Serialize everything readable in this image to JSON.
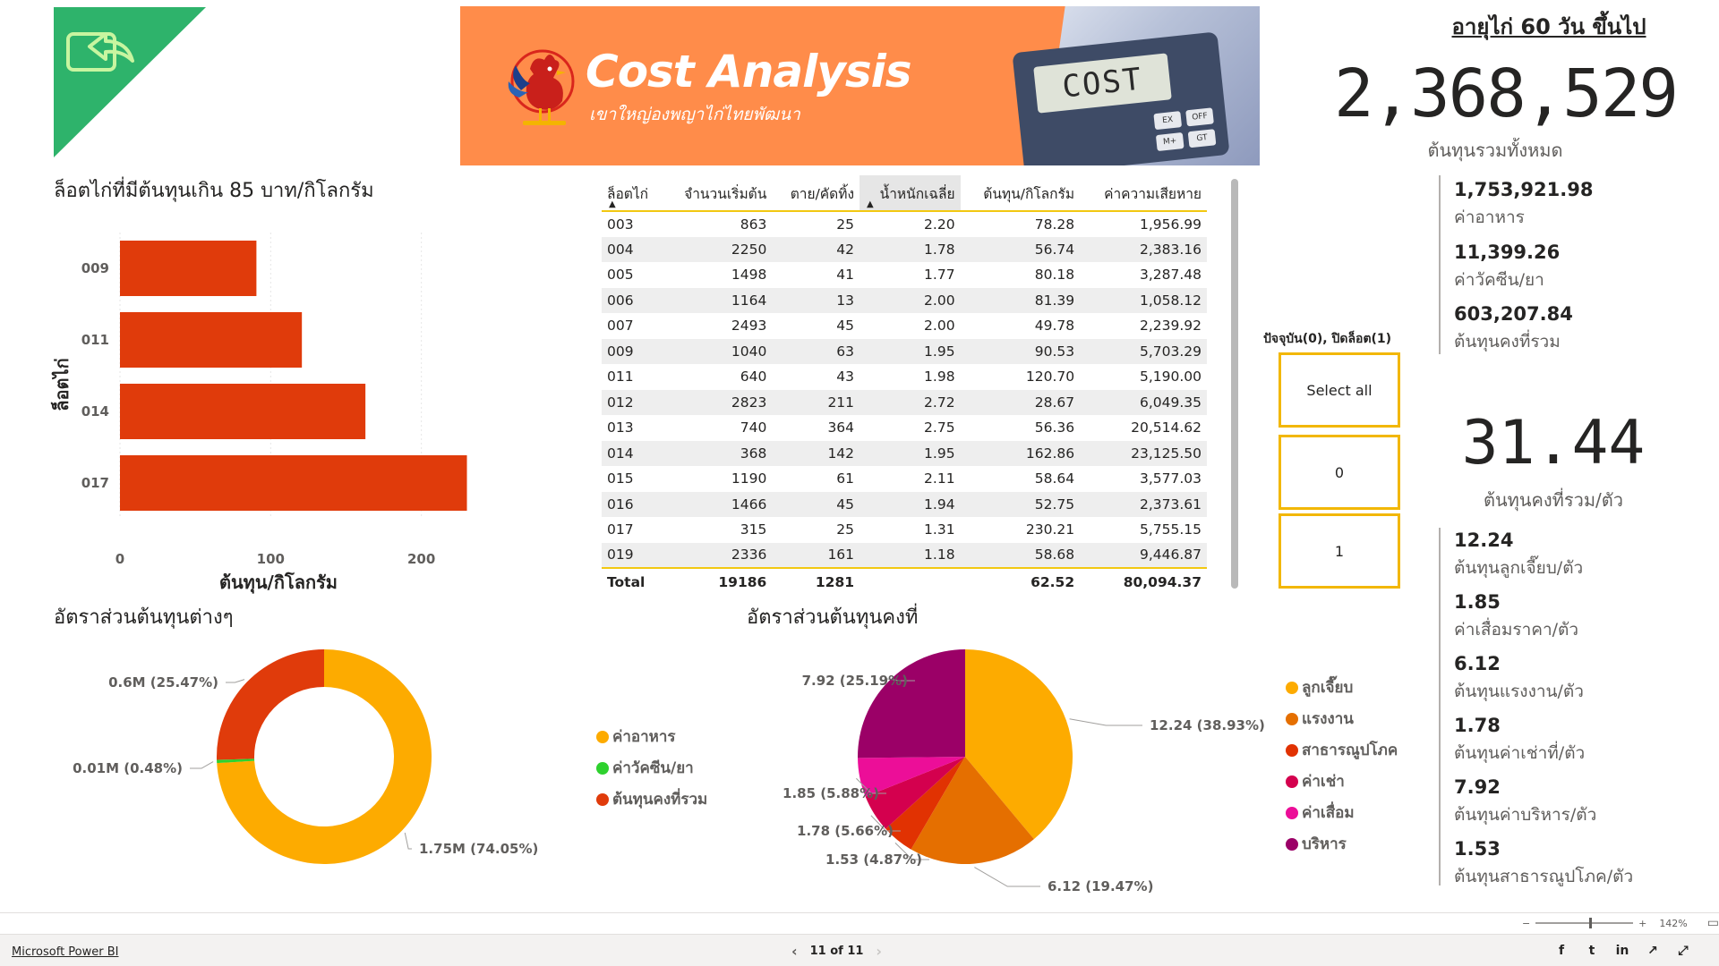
{
  "banner": {
    "title": "Cost Analysis",
    "subtitle": "เขาใหญ่องพญาไก่ไทยพัฒนา",
    "calc_screen": "COST",
    "calc_keys": [
      "EX",
      "OFF",
      "M+",
      "GT"
    ]
  },
  "kpi": {
    "header": "อายุไก่ 60 วัน ขึ้นไป",
    "total_value": "2,368,529",
    "total_label": "ต้นทุนรวมทั้งหมด",
    "breakdown": [
      {
        "value": "1,753,921.98",
        "label": "ค่าอาหาร"
      },
      {
        "value": "11,399.26",
        "label": "ค่าวัคซีน/ยา"
      },
      {
        "value": "603,207.84",
        "label": "ต้นทุนคงที่รวม"
      }
    ],
    "per_bird_value": "31.44",
    "per_bird_label": "ต้นทุนคงที่รวม/ตัว",
    "per_bird_items": [
      {
        "value": "12.24",
        "label": "ต้นทุนลูกเจี๊ยบ/ตัว"
      },
      {
        "value": "1.85",
        "label": "ค่าเสื่อมราคา/ตัว"
      },
      {
        "value": "6.12",
        "label": "ต้นทุนแรงงาน/ตัว"
      },
      {
        "value": "1.78",
        "label": "ต้นทุนค่าเช่าที่/ตัว"
      },
      {
        "value": "7.92",
        "label": "ต้นทุนค่าบริหาร/ตัว"
      },
      {
        "value": "1.53",
        "label": "ต้นทุนสาธารณูปโภค/ตัว"
      }
    ]
  },
  "bar_section": {
    "title": "ล็อตไก่ที่มีต้นทุนเกิน 85 บาท/กิโลกรัม"
  },
  "table": {
    "headers": [
      "ล็อตไก่",
      "จำนวนเริ่มต้น",
      "ตาย/คัดทิ้ง",
      "น้ำหนักเฉลี่ย",
      "ต้นทุน/กิโลกรัม",
      "ค่าความเสียหาย"
    ],
    "rows": [
      [
        "003",
        "863",
        "25",
        "2.20",
        "78.28",
        "1,956.99"
      ],
      [
        "004",
        "2250",
        "42",
        "1.78",
        "56.74",
        "2,383.16"
      ],
      [
        "005",
        "1498",
        "41",
        "1.77",
        "80.18",
        "3,287.48"
      ],
      [
        "006",
        "1164",
        "13",
        "2.00",
        "81.39",
        "1,058.12"
      ],
      [
        "007",
        "2493",
        "45",
        "2.00",
        "49.78",
        "2,239.92"
      ],
      [
        "009",
        "1040",
        "63",
        "1.95",
        "90.53",
        "5,703.29"
      ],
      [
        "011",
        "640",
        "43",
        "1.98",
        "120.70",
        "5,190.00"
      ],
      [
        "012",
        "2823",
        "211",
        "2.72",
        "28.67",
        "6,049.35"
      ],
      [
        "013",
        "740",
        "364",
        "2.75",
        "56.36",
        "20,514.62"
      ],
      [
        "014",
        "368",
        "142",
        "1.95",
        "162.86",
        "23,125.50"
      ],
      [
        "015",
        "1190",
        "61",
        "2.11",
        "58.64",
        "3,577.03"
      ],
      [
        "016",
        "1466",
        "45",
        "1.94",
        "52.75",
        "2,373.61"
      ],
      [
        "017",
        "315",
        "25",
        "1.31",
        "230.21",
        "5,755.15"
      ],
      [
        "019",
        "2336",
        "161",
        "1.18",
        "58.68",
        "9,446.87"
      ]
    ],
    "total": [
      "Total",
      "19186",
      "1281",
      "",
      "62.52",
      "80,094.37"
    ]
  },
  "slicer": {
    "title": "ปัจจุบัน(0), ปิดล็อต(1)",
    "options": [
      "Select all",
      "0",
      "1"
    ]
  },
  "donut_section": {
    "title": "อัตราส่วนต้นทุนต่างๆ"
  },
  "pie_section": {
    "title": "อัตราส่วนต้นทุนคงที่"
  },
  "footer": {
    "brand": "Microsoft Power BI",
    "page_indicator": "11 of 11",
    "zoom": "142%"
  },
  "colors": {
    "bar": "#e03b0b",
    "accent_yellow": "#f2c811",
    "slicer_border": "#f2b705",
    "back_tile": "#2eb36b"
  },
  "chart_data": [
    {
      "type": "bar",
      "orientation": "horizontal",
      "categories": [
        "009",
        "011",
        "014",
        "017"
      ],
      "values": [
        90.53,
        120.7,
        162.86,
        230.21
      ],
      "xlabel": "ต้นทุน/กิโลกรัม",
      "ylabel": "ล็อตไก่",
      "xticks": [
        0,
        100,
        200
      ],
      "xlim": [
        0,
        240
      ],
      "grid": true,
      "color": "#e03b0b"
    },
    {
      "type": "pie",
      "variant": "donut",
      "series": [
        {
          "name": "ค่าอาหาร",
          "value": 1.75,
          "label": "1.75M (74.05%)",
          "color": "#fdab00"
        },
        {
          "name": "ค่าวัคซีน/ยา",
          "value": 0.01,
          "label": "0.01M (0.48%)",
          "color": "#2ed12e"
        },
        {
          "name": "ต้นทุนคงที่รวม",
          "value": 0.6,
          "label": "0.6M (25.47%)",
          "color": "#e03b0b"
        }
      ],
      "percentages": [
        74.05,
        0.48,
        25.47
      ],
      "legend_position": "right"
    },
    {
      "type": "pie",
      "series": [
        {
          "name": "ลูกเจี๊ยบ",
          "value": 12.24,
          "label": "12.24 (38.93%)",
          "color": "#fdab00"
        },
        {
          "name": "แรงงาน",
          "value": 6.12,
          "label": "6.12 (19.47%)",
          "color": "#e56f00"
        },
        {
          "name": "สาธารณูปโภค",
          "value": 1.53,
          "label": "1.53 (4.87%)",
          "color": "#e13202"
        },
        {
          "name": "ค่าเช่า",
          "value": 1.78,
          "label": "1.78 (5.66%)",
          "color": "#d4004e"
        },
        {
          "name": "ค่าเสื่อม",
          "value": 1.85,
          "label": "1.85 (5.88%)",
          "color": "#ec0e98"
        },
        {
          "name": "บริหาร",
          "value": 7.92,
          "label": "7.92 (25.19%)",
          "color": "#9b0067"
        }
      ],
      "percentages": [
        38.93,
        19.47,
        4.87,
        5.66,
        5.88,
        25.19
      ],
      "legend_position": "right"
    }
  ]
}
